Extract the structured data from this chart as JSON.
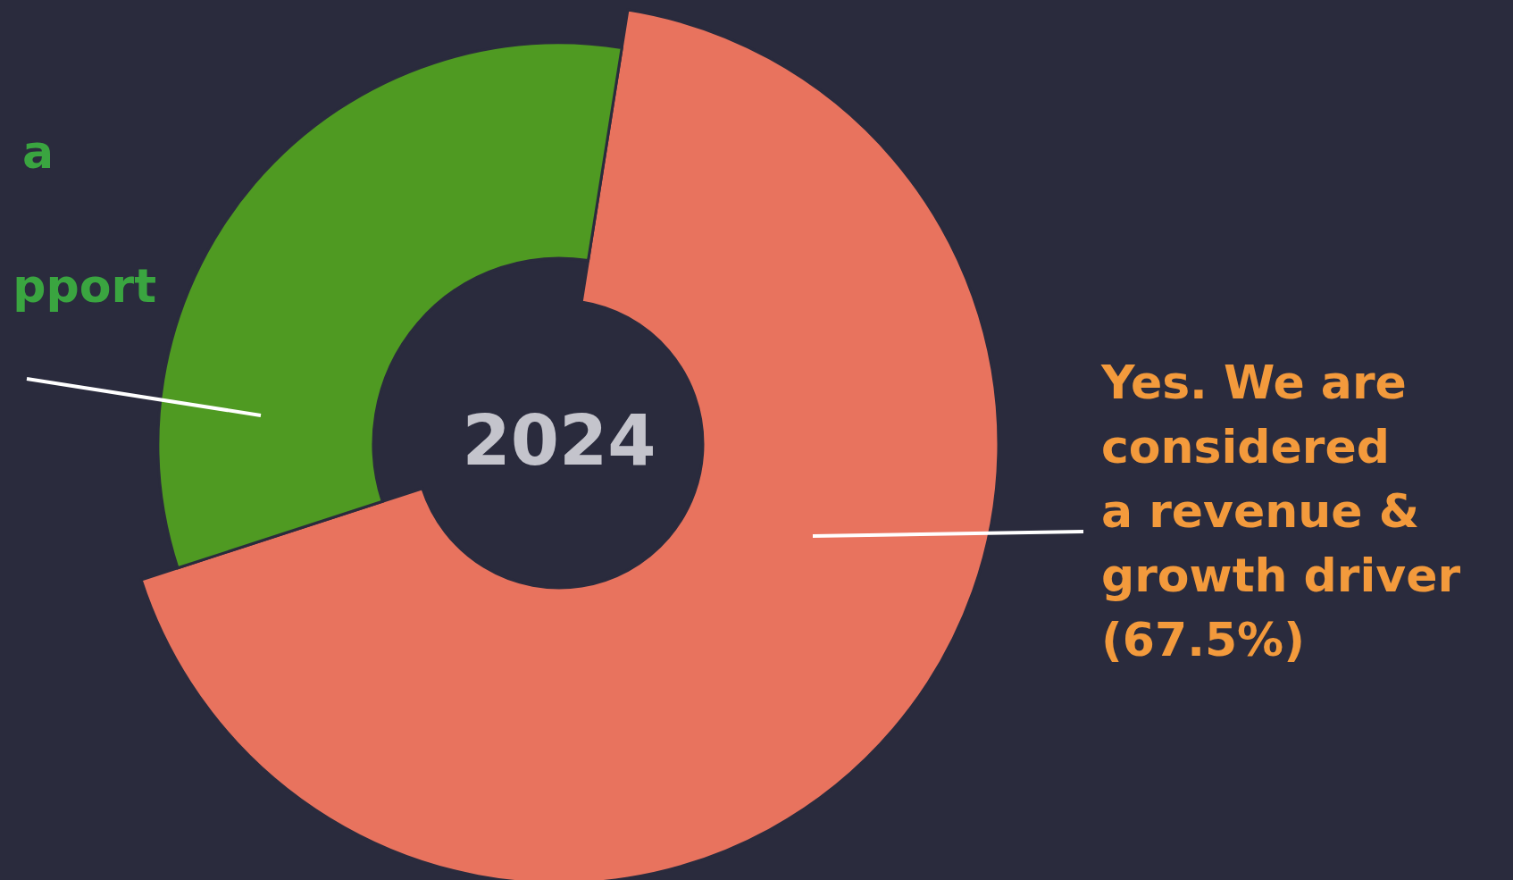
{
  "chart_data": {
    "type": "donut",
    "title": "2024",
    "categories": [
      null,
      null
    ],
    "values": [
      67.5,
      32.5
    ],
    "colors": [
      "#e8735e",
      "#4f9a22"
    ],
    "annotations": [
      "Yes. We are\nconsidered\na revenue &\ngrowth driver\n(67.5%)",
      "a",
      "pport"
    ]
  }
}
